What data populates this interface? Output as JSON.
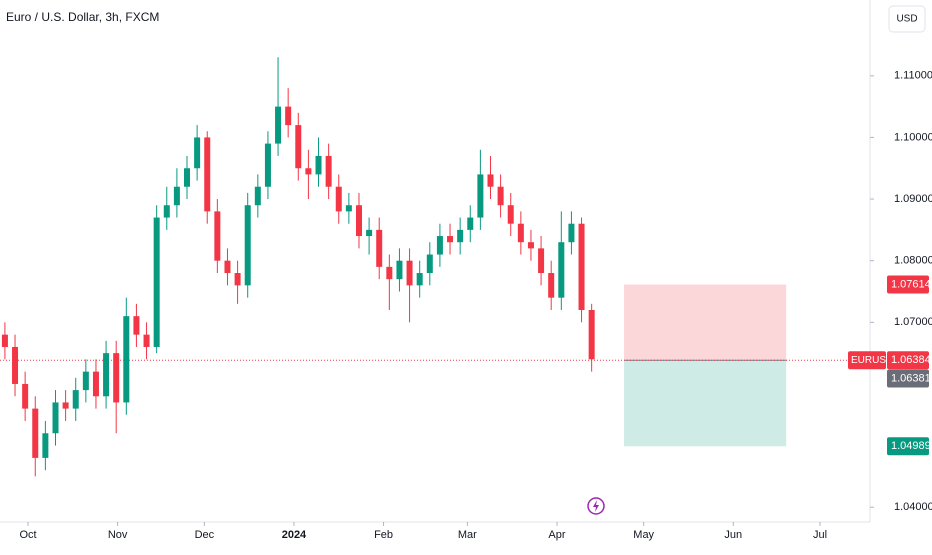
{
  "chart_data": {
    "type": "candlestick",
    "title": "Euro / U.S. Dollar, 3h, FXCM",
    "currency": "USD",
    "up_color": "#089981",
    "down_color": "#f23645",
    "x": [
      -8,
      -4.5,
      -1,
      2.5,
      6,
      9.5,
      13,
      16.5,
      20,
      23.5,
      27,
      30.5,
      34,
      37.5,
      41,
      44.5,
      48,
      51.5,
      55,
      58.5,
      62,
      65.5,
      69,
      72.5,
      76,
      79.5,
      83,
      86.5,
      90,
      93.5,
      97,
      100.5,
      104,
      107.5,
      111,
      114.5,
      118,
      121.5,
      125,
      128.5,
      132,
      135.5,
      139,
      142.5,
      146,
      149.5,
      153,
      156.5,
      160,
      163.5,
      167,
      170.5,
      174,
      177.5,
      181,
      184.5,
      188,
      191.5,
      195
    ],
    "open": [
      1.068,
      1.066,
      1.06,
      1.056,
      1.048,
      1.052,
      1.057,
      1.056,
      1.059,
      1.062,
      1.058,
      1.065,
      1.057,
      1.071,
      1.068,
      1.066,
      1.087,
      1.089,
      1.092,
      1.095,
      1.1,
      1.088,
      1.08,
      1.078,
      1.076,
      1.089,
      1.092,
      1.099,
      1.105,
      1.102,
      1.095,
      1.094,
      1.097,
      1.092,
      1.088,
      1.089,
      1.084,
      1.085,
      1.079,
      1.077,
      1.08,
      1.076,
      1.078,
      1.081,
      1.084,
      1.083,
      1.085,
      1.087,
      1.094,
      1.092,
      1.089,
      1.086,
      1.083,
      1.082,
      1.078,
      1.074,
      1.083,
      1.086,
      1.072
    ],
    "high": [
      1.07,
      1.068,
      1.062,
      1.058,
      1.054,
      1.059,
      1.059,
      1.061,
      1.064,
      1.064,
      1.067,
      1.067,
      1.074,
      1.073,
      1.07,
      1.089,
      1.092,
      1.095,
      1.097,
      1.102,
      1.101,
      1.09,
      1.082,
      1.08,
      1.091,
      1.094,
      1.101,
      1.113,
      1.108,
      1.104,
      1.098,
      1.1,
      1.099,
      1.094,
      1.091,
      1.091,
      1.087,
      1.087,
      1.081,
      1.082,
      1.082,
      1.08,
      1.083,
      1.086,
      1.086,
      1.087,
      1.089,
      1.098,
      1.097,
      1.094,
      1.091,
      1.088,
      1.085,
      1.084,
      1.08,
      1.088,
      1.088,
      1.087,
      1.073
    ],
    "low": [
      1.064,
      1.058,
      1.054,
      1.045,
      1.046,
      1.05,
      1.054,
      1.054,
      1.057,
      1.056,
      1.056,
      1.052,
      1.055,
      1.066,
      1.064,
      1.065,
      1.085,
      1.087,
      1.09,
      1.093,
      1.086,
      1.078,
      1.076,
      1.073,
      1.074,
      1.087,
      1.09,
      1.097,
      1.1,
      1.093,
      1.09,
      1.092,
      1.09,
      1.086,
      1.086,
      1.082,
      1.081,
      1.077,
      1.072,
      1.075,
      1.07,
      1.074,
      1.076,
      1.079,
      1.081,
      1.081,
      1.083,
      1.085,
      1.09,
      1.087,
      1.084,
      1.081,
      1.08,
      1.076,
      1.072,
      1.072,
      1.081,
      1.07,
      1.062
    ],
    "close": [
      1.066,
      1.06,
      1.056,
      1.048,
      1.052,
      1.057,
      1.056,
      1.059,
      1.062,
      1.058,
      1.065,
      1.057,
      1.071,
      1.068,
      1.066,
      1.087,
      1.089,
      1.092,
      1.095,
      1.1,
      1.088,
      1.08,
      1.078,
      1.076,
      1.089,
      1.092,
      1.099,
      1.105,
      1.102,
      1.095,
      1.094,
      1.097,
      1.092,
      1.088,
      1.089,
      1.084,
      1.085,
      1.079,
      1.077,
      1.08,
      1.076,
      1.078,
      1.081,
      1.084,
      1.083,
      1.085,
      1.087,
      1.094,
      1.092,
      1.089,
      1.086,
      1.083,
      1.082,
      1.078,
      1.074,
      1.083,
      1.086,
      1.072,
      1.064
    ],
    "xlim": [
      -9.7,
      291.3
    ],
    "xticks": [
      {
        "value": 0,
        "label": "Oct"
      },
      {
        "value": 31,
        "label": "Nov"
      },
      {
        "value": 61,
        "label": "Dec"
      },
      {
        "value": 92,
        "label": "2024"
      },
      {
        "value": 123,
        "label": "Feb"
      },
      {
        "value": 152,
        "label": "Mar"
      },
      {
        "value": 183,
        "label": "Apr"
      },
      {
        "value": 213,
        "label": "May"
      },
      {
        "value": 244,
        "label": "Jun"
      },
      {
        "value": 274,
        "label": "Jul"
      }
    ],
    "ylim": [
      1.0376,
      1.1223
    ],
    "yticks": [
      {
        "value": 1.04,
        "label": "1.04000"
      },
      {
        "value": 1.07,
        "label": "1.07000"
      },
      {
        "value": 1.08,
        "label": "1.08000"
      },
      {
        "value": 1.09,
        "label": "1.09000"
      },
      {
        "value": 1.1,
        "label": "1.10000"
      },
      {
        "value": 1.11,
        "label": "1.11000"
      }
    ],
    "grid": false,
    "last_price": {
      "name": "EURUSD",
      "value": 1.06384
    },
    "bid": 1.06381,
    "position": {
      "x_start": 206.2,
      "x_end": 262.3,
      "entry": 1.06384,
      "stop": 1.07614,
      "target": 1.04989
    }
  }
}
